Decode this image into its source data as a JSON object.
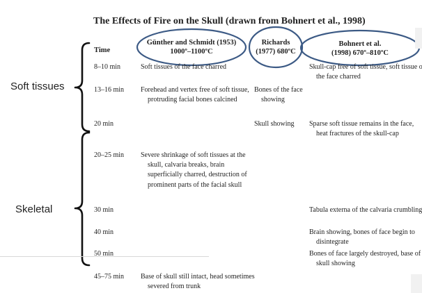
{
  "title": "The Effects of Fire on the Skull (drawn from Bohnert et al., 1998)",
  "headers": {
    "time": "Time",
    "gunther_line1": "Günther and Schmidt (1953)",
    "gunther_line2": "1000º–1100ºC",
    "richards_line1": "Richards",
    "richards_line2": "(1977) 680ºC",
    "bohnert_line1": "Bohnert et al.",
    "bohnert_line2": "(1998) 670º–810ºC"
  },
  "side_labels": {
    "soft": "Soft tissues",
    "skeletal": "Skeletal"
  },
  "rows": [
    {
      "time": "8–10 min",
      "gunther": "Soft tissues of the face charred",
      "richards": "",
      "bohnert": "Skull-cap free of soft tissue, soft tissue of the face charred"
    },
    {
      "time": "13–16 min",
      "gunther": "Forehead and vertex free of soft tissue, protruding facial bones calcined",
      "richards": "Bones of the face showing",
      "bohnert": ""
    },
    {
      "time": "20 min",
      "gunther": "",
      "richards": "Skull showing",
      "bohnert": "Sparse soft tissue remains in the face, heat fractures of the skull-cap"
    },
    {
      "time": "20–25 min",
      "gunther": "Severe shrinkage of soft tissues at the skull, calvaria breaks, brain superficially charred, destruction of prominent parts of the facial skull",
      "richards": "",
      "bohnert": ""
    },
    {
      "time": "30 min",
      "gunther": "",
      "richards": "",
      "bohnert": "Tabula externa of the calvaria crumbling"
    },
    {
      "time": "40 min",
      "gunther": "",
      "richards": "",
      "bohnert": "Brain showing, bones of face begin to disintegrate"
    },
    {
      "time": "50 min",
      "gunther": "",
      "richards": "",
      "bohnert": "Bones of face largely destroyed, base of skull showing"
    },
    {
      "time": "45–75 min",
      "gunther": "Base of skull still intact, head sometimes severed from trunk",
      "richards": "",
      "bohnert": ""
    }
  ],
  "colors": {
    "ellipse": "#3c5a85",
    "brace": "#111111",
    "text": "#1f1f1f"
  }
}
